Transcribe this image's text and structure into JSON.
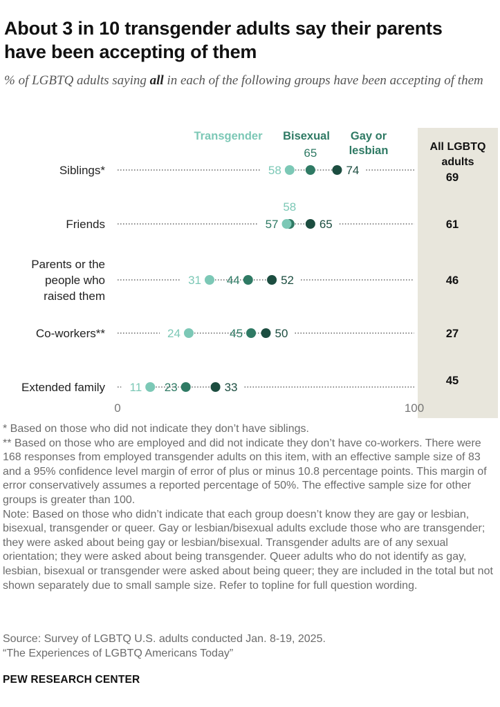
{
  "title": "About 3 in 10 transgender adults say their parents have been accepting of them",
  "subtitle_pre": "% of LGBTQ adults saying ",
  "subtitle_em": "all",
  "subtitle_post": " in each of the following groups have been accepting of them",
  "chart_data": {
    "type": "dot",
    "x_range": [
      0,
      100
    ],
    "x_ticks": [
      "0",
      "100"
    ],
    "series": [
      {
        "name": "Transgender",
        "color": "#7cc8b6"
      },
      {
        "name": "Bisexual",
        "color": "#2f7a64"
      },
      {
        "name": "Gay or lesbian",
        "color": "#1c4d40"
      }
    ],
    "legend": {
      "transgender": "Transgender",
      "bisexual": "Bisexual",
      "gay_line1": "Gay or",
      "gay_line2": "lesbian"
    },
    "all_header": [
      "All LGBTQ",
      "adults"
    ],
    "categories": [
      {
        "label": [
          "Siblings*"
        ],
        "values": [
          58,
          65,
          74
        ],
        "all": 69
      },
      {
        "label": [
          "Friends"
        ],
        "values": [
          57,
          58,
          65
        ],
        "all": 61
      },
      {
        "label": [
          "Parents or the",
          "people who",
          "raised them"
        ],
        "values": [
          31,
          44,
          52
        ],
        "all": 46
      },
      {
        "label": [
          "Co-workers**"
        ],
        "values": [
          24,
          45,
          50
        ],
        "all": 27
      },
      {
        "label": [
          "Extended family"
        ],
        "values": [
          11,
          23,
          33
        ],
        "all": 45
      }
    ]
  },
  "notes": {
    "n1": "* Based on those who did not indicate they don’t have siblings.",
    "n2": "** Based on those who are employed and did not indicate they don’t have co-workers. There were 168 responses from employed transgender adults on this item, with an effective sample size of 83 and a 95% confidence level margin of error of plus or minus 10.8 percentage points. This margin of error conservatively assumes a reported percentage of 50%. The effective sample size for other groups is greater than 100.",
    "n3": "Note: Based on those who didn’t indicate that each group doesn’t know they are gay or lesbian, bisexual, transgender or queer. Gay or lesbian/bisexual adults exclude those who are transgender; they were asked about being gay or lesbian/bisexual. Transgender adults are of any sexual orientation; they were asked about being transgender. Queer adults who do not identify as gay, lesbian, bisexual or transgender were asked about being queer; they are included in the total but not shown separately due to small sample size. Refer to topline for full question wording."
  },
  "source": "Source: Survey of LGBTQ U.S. adults conducted Jan. 8-19, 2025.",
  "report": "“The Experiences of LGBTQ Americans Today”",
  "brand": "PEW RESEARCH CENTER"
}
